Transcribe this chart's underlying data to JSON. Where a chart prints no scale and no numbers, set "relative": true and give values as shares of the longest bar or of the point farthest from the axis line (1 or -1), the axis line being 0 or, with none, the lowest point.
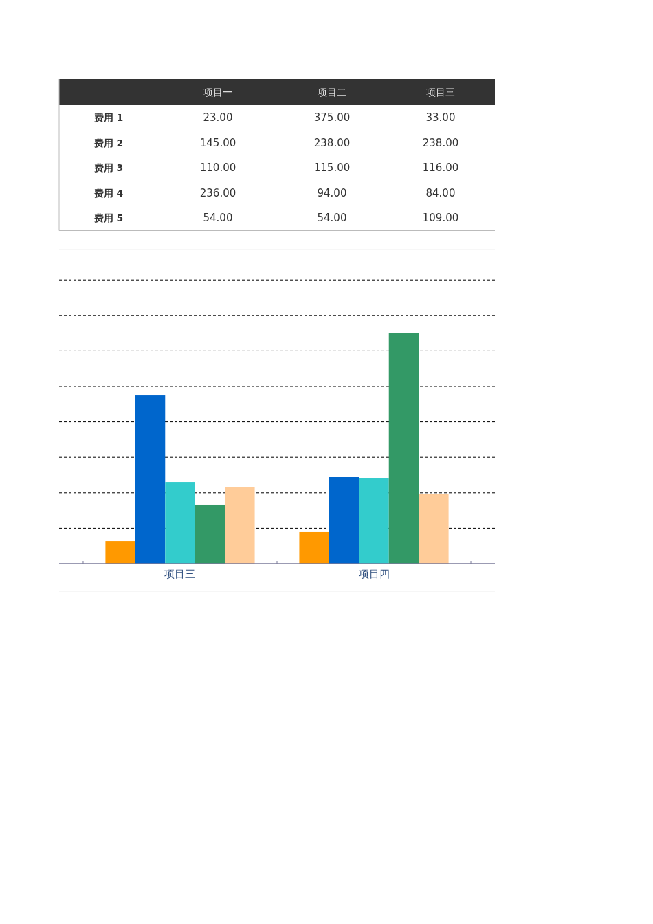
{
  "chart_data": [
    {
      "type": "other",
      "categories": [
        "项目一",
        "项目二",
        "项目三"
      ],
      "series": [
        {
          "name": "费用 1",
          "values": [
            23,
            375,
            33
          ],
          "value_labels": [
            "23.00",
            "375.00",
            "33.00"
          ]
        },
        {
          "name": "费用 2",
          "values": [
            145,
            238,
            238
          ],
          "value_labels": [
            "145.00",
            "238.00",
            "238.00"
          ]
        },
        {
          "name": "费用 3",
          "values": [
            110,
            115,
            116
          ],
          "value_labels": [
            "110.00",
            "115.00",
            "116.00"
          ]
        },
        {
          "name": "费用 4",
          "values": [
            236,
            94,
            84
          ],
          "value_labels": [
            "236.00",
            "94.00",
            "84.00"
          ]
        },
        {
          "name": "费用 5",
          "values": [
            54,
            54,
            109
          ],
          "value_labels": [
            "54.00",
            "54.00",
            "109.00"
          ]
        }
      ]
    },
    {
      "type": "bar",
      "relative": true,
      "categories": [
        "项目三",
        "项目四"
      ],
      "series": [
        {
          "color": "#ff9900",
          "values": [
            0.098,
            0.137
          ]
        },
        {
          "color": "#0066cc",
          "values": [
            0.729,
            0.375
          ]
        },
        {
          "color": "#33cccc",
          "values": [
            0.354,
            0.369
          ]
        },
        {
          "color": "#339966",
          "values": [
            0.256,
            1
          ]
        },
        {
          "color": "#ffcc99",
          "values": [
            0.333,
            0.301
          ]
        }
      ],
      "tick_labels": "x",
      "grid": "y",
      "line_style": "dashed"
    }
  ]
}
